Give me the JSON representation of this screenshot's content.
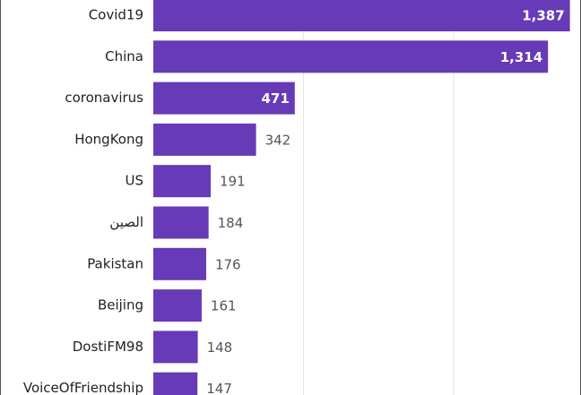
{
  "chart_data": {
    "type": "bar",
    "orientation": "horizontal",
    "categories": [
      "Covid19",
      "China",
      "coronavirus",
      "HongKong",
      "US",
      "الصين",
      "Pakistan",
      "Beijing",
      "DostiFM98",
      "VoiceOfFriendship"
    ],
    "values": [
      1387,
      1314,
      471,
      342,
      191,
      184,
      176,
      161,
      148,
      147
    ],
    "value_labels": [
      "1,387",
      "1,314",
      "471",
      "342",
      "191",
      "184",
      "176",
      "161",
      "148",
      "147"
    ],
    "color": "#673ab7",
    "xlim": [
      0,
      1400
    ],
    "xticks": [
      0,
      500,
      1000
    ],
    "grid": true
  }
}
